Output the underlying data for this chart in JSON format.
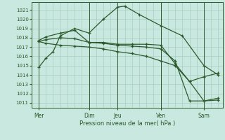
{
  "bg_color": "#c8e8e0",
  "grid_color": "#a0c8b8",
  "line_color": "#2d5a2d",
  "marker_color": "#2d5a2d",
  "xlabel": "Pression niveau de la mer( hPa )",
  "ylim": [
    1010.5,
    1021.8
  ],
  "yticks": [
    1011,
    1012,
    1013,
    1014,
    1015,
    1016,
    1017,
    1018,
    1019,
    1020,
    1021
  ],
  "x_day_labels": [
    "Mer",
    "Dim",
    "Jeu",
    "Ven",
    "Sam"
  ],
  "x_day_positions": [
    0.0,
    3.5,
    5.5,
    8.5,
    11.5
  ],
  "xlim": [
    -0.5,
    12.8
  ],
  "series": [
    {
      "x": [
        0,
        0.5,
        1.0,
        1.5,
        2.5,
        3.5,
        4.5,
        5.5,
        6.0,
        7.0,
        8.5,
        10.0,
        11.5,
        12.5
      ],
      "y": [
        1014.8,
        1015.8,
        1016.5,
        1018.2,
        1019.0,
        1018.5,
        1020.0,
        1021.3,
        1021.4,
        1020.5,
        1019.3,
        1018.2,
        1015.0,
        1014.0
      ]
    },
    {
      "x": [
        0,
        0.5,
        1.5,
        2.5,
        3.5,
        4.5,
        5.5,
        6.5,
        7.5,
        8.5,
        9.5,
        10.5,
        11.5,
        12.5
      ],
      "y": [
        1017.7,
        1018.1,
        1018.5,
        1018.8,
        1017.5,
        1017.5,
        1017.3,
        1017.3,
        1017.3,
        1017.2,
        1015.2,
        1013.3,
        1011.2,
        1011.5
      ]
    },
    {
      "x": [
        0,
        0.5,
        1.5,
        2.5,
        3.5,
        4.5,
        5.5,
        6.5,
        7.5,
        8.5,
        9.5,
        10.5,
        11.5,
        12.5
      ],
      "y": [
        1017.6,
        1017.8,
        1018.0,
        1017.9,
        1017.5,
        1017.4,
        1017.2,
        1017.1,
        1017.0,
        1016.8,
        1015.5,
        1011.2,
        1011.2,
        1011.3
      ]
    },
    {
      "x": [
        0,
        0.5,
        1.5,
        2.5,
        3.5,
        4.5,
        5.5,
        6.5,
        7.5,
        8.5,
        9.5,
        10.5,
        11.5,
        12.5
      ],
      "y": [
        1017.6,
        1017.4,
        1017.2,
        1017.1,
        1017.0,
        1016.8,
        1016.5,
        1016.3,
        1016.0,
        1015.5,
        1015.0,
        1013.3,
        1013.8,
        1014.2
      ]
    }
  ]
}
